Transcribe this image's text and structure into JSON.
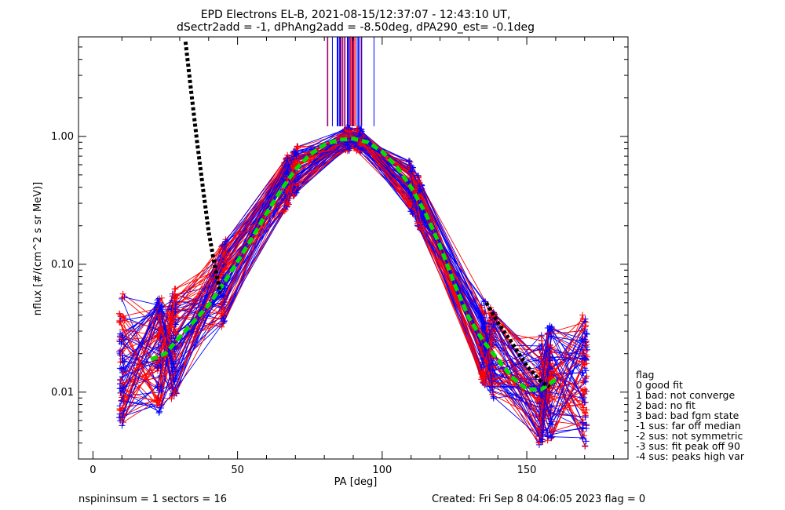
{
  "chart_data": {
    "type": "line",
    "title": "EPD Electrons EL-B, 2021-08-15/12:37:07 - 12:43:10 UT,",
    "subtitle": "dSectr2add = -1, dPhAng2add = -8.50deg, dPA290_est=  -0.1deg",
    "xlabel": "PA [deg]",
    "ylabel": "nflux [#/(cm^2 s sr MeV)]",
    "xlim": [
      -5,
      185
    ],
    "ylim": [
      0.003,
      6.0
    ],
    "yscale": "log",
    "xticks": [
      0,
      50,
      100,
      150
    ],
    "xtick_labels": [
      "0",
      "50",
      "100",
      "150"
    ],
    "yticks": [
      0.01,
      0.1,
      1.0
    ],
    "ytick_labels": [
      "0.01",
      "0.10",
      "1.00"
    ],
    "grid": false,
    "legend_placement": "right-outside",
    "colors": {
      "red": "#ff0000",
      "blue": "#0000ff",
      "green": "#00e000",
      "black": "#000000"
    },
    "series": [
      {
        "color": "green",
        "style": "thick-dashed",
        "x": [
          20,
          25,
          30,
          35,
          40,
          45,
          50,
          55,
          60,
          65,
          70,
          75,
          80,
          85,
          90,
          95,
          100,
          105,
          110,
          115,
          120,
          125,
          130,
          135,
          140,
          145,
          150,
          155,
          160
        ],
        "y": [
          0.018,
          0.02,
          0.027,
          0.036,
          0.048,
          0.07,
          0.105,
          0.16,
          0.25,
          0.38,
          0.55,
          0.72,
          0.86,
          0.94,
          0.96,
          0.9,
          0.76,
          0.58,
          0.4,
          0.25,
          0.14,
          0.07,
          0.038,
          0.025,
          0.018,
          0.013,
          0.0105,
          0.0105,
          0.0125
        ]
      },
      {
        "color": "black",
        "style": "thick-dotted",
        "x": [
          32,
          34,
          36,
          38,
          40,
          42,
          44
        ],
        "y": [
          5.5,
          2.2,
          0.9,
          0.4,
          0.18,
          0.1,
          0.06
        ]
      },
      {
        "color": "black",
        "style": "thick-dotted",
        "x": [
          136,
          140,
          145,
          150,
          155,
          158
        ],
        "y": [
          0.05,
          0.035,
          0.024,
          0.016,
          0.012,
          0.011
        ]
      }
    ],
    "legend_title": "flag",
    "legend_entries": [
      " 0 good fit",
      " 1 bad: not converge",
      " 2 bad: no fit",
      " 3 bad: bad fgm state",
      "-1 sus: far off median",
      "-2 sus: not symmetric",
      "-3 sus: fit peak off 90",
      "-4 sus: peaks high var"
    ]
  },
  "footer": {
    "left": "nspininsum =  1  sectors = 16",
    "right": "Created: Fri Sep  8 04:06:05 2023   flag = 0"
  }
}
